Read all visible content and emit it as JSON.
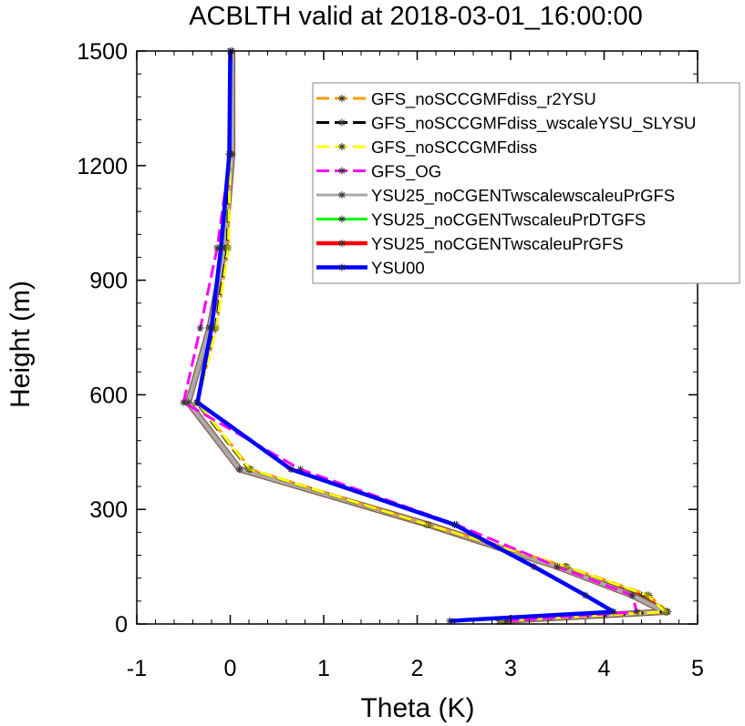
{
  "chart_data": {
    "type": "line",
    "title": "ACBLTH valid at 2018-03-01_16:00:00",
    "xlabel": "Theta (K)",
    "ylabel": "Height (m)",
    "xlim": [
      -1,
      5
    ],
    "ylim": [
      0,
      1500
    ],
    "x_ticks": [
      "-1",
      "0",
      "1",
      "2",
      "3",
      "4",
      "5"
    ],
    "y_ticks": [
      "0",
      "300",
      "600",
      "900",
      "1200",
      "1500"
    ],
    "grid": false,
    "legend_position": "top-right",
    "series": [
      {
        "name": "GFS_noSCCGMFdiss_r2YSU",
        "color": "#ff9900",
        "dash": "dash",
        "marker": "asterisk",
        "x": [
          2.9,
          4.68,
          4.48,
          3.6,
          2.12,
          0.22,
          -0.35,
          -0.15,
          -0.02,
          0.0,
          0.0
        ],
        "y": [
          8,
          32,
          75,
          150,
          260,
          405,
          580,
          775,
          985,
          1230,
          1500
        ]
      },
      {
        "name": "GFS_noSCCGMFdiss_wscaleYSU_SLYSU",
        "color": "#000000",
        "dash": "dash",
        "marker": "asterisk",
        "x": [
          2.92,
          4.67,
          4.45,
          3.58,
          2.1,
          0.2,
          -0.36,
          -0.16,
          -0.03,
          -0.01,
          0.0
        ],
        "y": [
          8,
          32,
          75,
          150,
          260,
          405,
          580,
          775,
          985,
          1230,
          1500
        ]
      },
      {
        "name": "GFS_noSCCGMFdiss",
        "color": "#ffff00",
        "dash": "dash",
        "marker": "asterisk",
        "x": [
          2.9,
          4.66,
          4.46,
          3.59,
          2.11,
          0.21,
          -0.35,
          -0.15,
          -0.02,
          0.0,
          0.0
        ],
        "y": [
          8,
          32,
          75,
          150,
          260,
          405,
          580,
          775,
          985,
          1230,
          1500
        ]
      },
      {
        "name": "GFS_OG",
        "color": "#ff00ff",
        "dash": "dash",
        "marker": "asterisk",
        "x": [
          2.95,
          4.35,
          4.3,
          3.5,
          2.42,
          0.75,
          -0.5,
          -0.32,
          -0.14,
          0.0,
          0.0
        ],
        "y": [
          8,
          32,
          75,
          150,
          260,
          405,
          580,
          775,
          985,
          1230,
          1500
        ]
      },
      {
        "name": "YSU25_noCGENTwscalewscaleuPrGFS",
        "color": "#aaaaaa",
        "dash": "solid",
        "marker": "asterisk",
        "x": [
          2.88,
          4.65,
          4.3,
          3.5,
          2.12,
          0.1,
          -0.45,
          -0.22,
          -0.06,
          0.02,
          0.02
        ],
        "y": [
          8,
          32,
          75,
          150,
          260,
          405,
          580,
          775,
          985,
          1230,
          1500
        ]
      },
      {
        "name": "YSU25_noCGENTwscaleuPrDTGFS",
        "color": "#00ff00",
        "dash": "solid",
        "marker": "asterisk",
        "x": [
          2.9,
          4.68,
          4.4,
          3.52,
          2.12,
          0.1,
          -0.47,
          -0.23,
          -0.06,
          0.0,
          0.0
        ],
        "y": [
          8,
          32,
          75,
          150,
          260,
          405,
          580,
          775,
          985,
          1230,
          1500
        ]
      },
      {
        "name": "YSU25_noCGENTwscaleuPrGFS",
        "color": "#ff0000",
        "dash": "solid",
        "marker": "asterisk",
        "x": [
          2.9,
          4.68,
          4.4,
          3.52,
          2.12,
          0.1,
          -0.47,
          -0.23,
          -0.06,
          0.0,
          0.0
        ],
        "y": [
          8,
          32,
          75,
          150,
          260,
          405,
          580,
          775,
          985,
          1230,
          1500
        ]
      },
      {
        "name": "YSU00",
        "color": "#0000ff",
        "dash": "solid",
        "marker": "asterisk",
        "x": [
          2.35,
          4.1,
          3.8,
          3.25,
          2.4,
          0.65,
          -0.35,
          -0.2,
          -0.1,
          -0.01,
          0.0
        ],
        "y": [
          8,
          32,
          75,
          150,
          260,
          405,
          580,
          775,
          985,
          1230,
          1500
        ]
      }
    ]
  }
}
